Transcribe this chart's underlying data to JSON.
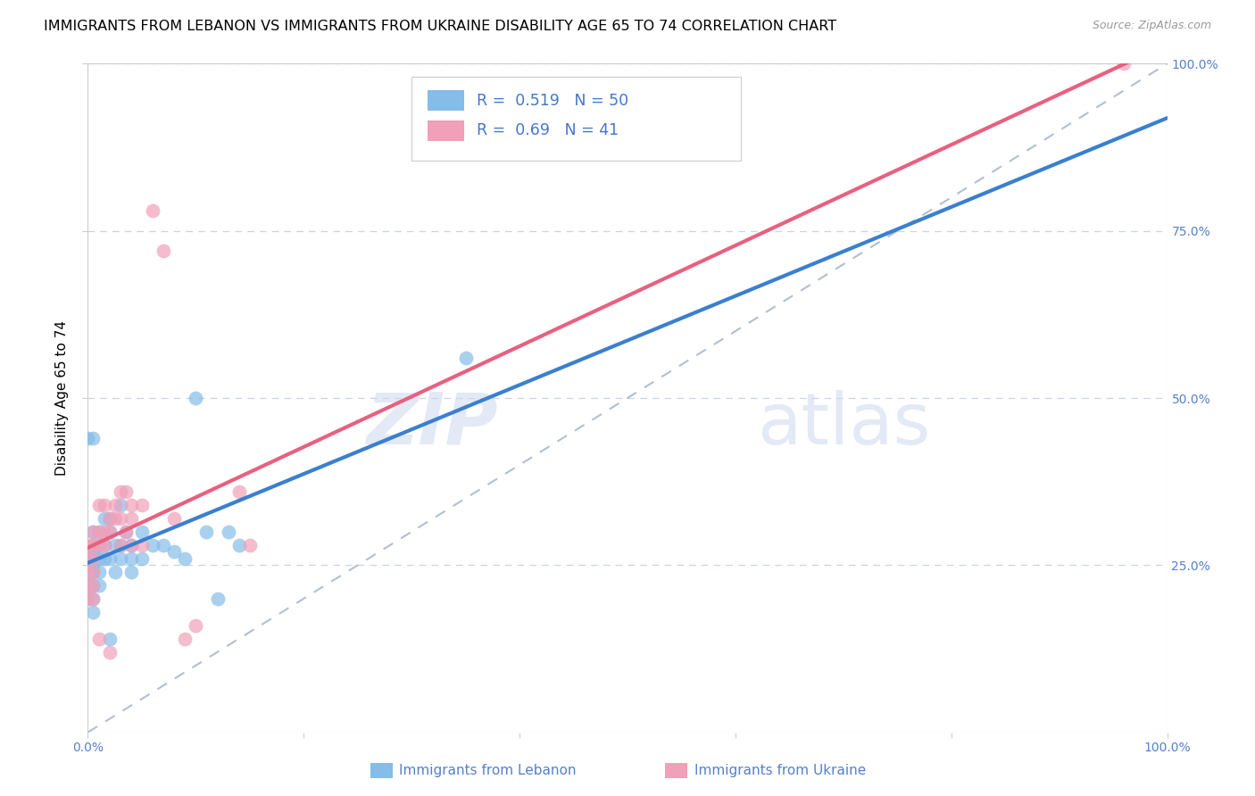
{
  "title": "IMMIGRANTS FROM LEBANON VS IMMIGRANTS FROM UKRAINE DISABILITY AGE 65 TO 74 CORRELATION CHART",
  "source": "Source: ZipAtlas.com",
  "ylabel": "Disability Age 65 to 74",
  "xlim": [
    0,
    1.0
  ],
  "ylim": [
    0,
    1.0
  ],
  "xtick_labels": [
    "0.0%",
    "",
    "",
    "",
    "",
    "100.0%"
  ],
  "xtick_vals": [
    0.0,
    0.2,
    0.4,
    0.6,
    0.8,
    1.0
  ],
  "ytick_vals": [
    0.25,
    0.5,
    0.75,
    1.0
  ],
  "right_ytick_labels": [
    "25.0%",
    "50.0%",
    "75.0%",
    "100.0%"
  ],
  "lebanon_color": "#85bce8",
  "ukraine_color": "#f0a0b8",
  "lebanon_R": 0.519,
  "lebanon_N": 50,
  "ukraine_R": 0.69,
  "ukraine_N": 41,
  "lebanon_line_color": "#3a7fd0",
  "ukraine_line_color": "#e86080",
  "diagonal_color": "#aab8cc",
  "lebanon_scatter_x": [
    0.0,
    0.0,
    0.0,
    0.0,
    0.0,
    0.0,
    0.0,
    0.005,
    0.005,
    0.005,
    0.005,
    0.005,
    0.005,
    0.005,
    0.005,
    0.01,
    0.01,
    0.01,
    0.01,
    0.01,
    0.015,
    0.015,
    0.015,
    0.02,
    0.02,
    0.02,
    0.02,
    0.025,
    0.025,
    0.03,
    0.03,
    0.03,
    0.035,
    0.04,
    0.04,
    0.04,
    0.05,
    0.05,
    0.06,
    0.07,
    0.08,
    0.09,
    0.1,
    0.11,
    0.12,
    0.13,
    0.14,
    0.35,
    0.0,
    0.005
  ],
  "lebanon_scatter_y": [
    0.27,
    0.26,
    0.25,
    0.23,
    0.22,
    0.21,
    0.2,
    0.3,
    0.28,
    0.27,
    0.25,
    0.24,
    0.22,
    0.2,
    0.18,
    0.3,
    0.28,
    0.26,
    0.24,
    0.22,
    0.32,
    0.28,
    0.26,
    0.32,
    0.3,
    0.26,
    0.14,
    0.28,
    0.24,
    0.34,
    0.28,
    0.26,
    0.3,
    0.28,
    0.26,
    0.24,
    0.3,
    0.26,
    0.28,
    0.28,
    0.27,
    0.26,
    0.5,
    0.3,
    0.2,
    0.3,
    0.28,
    0.56,
    0.44,
    0.44
  ],
  "ukraine_scatter_x": [
    0.0,
    0.0,
    0.0,
    0.0,
    0.0,
    0.005,
    0.005,
    0.005,
    0.005,
    0.005,
    0.005,
    0.01,
    0.01,
    0.01,
    0.01,
    0.015,
    0.015,
    0.015,
    0.02,
    0.02,
    0.02,
    0.025,
    0.025,
    0.03,
    0.03,
    0.03,
    0.035,
    0.035,
    0.04,
    0.04,
    0.04,
    0.05,
    0.05,
    0.06,
    0.07,
    0.08,
    0.09,
    0.1,
    0.14,
    0.15,
    0.96
  ],
  "ukraine_scatter_y": [
    0.28,
    0.26,
    0.24,
    0.22,
    0.2,
    0.3,
    0.28,
    0.26,
    0.24,
    0.22,
    0.2,
    0.34,
    0.3,
    0.28,
    0.14,
    0.34,
    0.3,
    0.28,
    0.32,
    0.3,
    0.12,
    0.34,
    0.32,
    0.36,
    0.32,
    0.28,
    0.36,
    0.3,
    0.34,
    0.32,
    0.28,
    0.34,
    0.28,
    0.78,
    0.72,
    0.32,
    0.14,
    0.16,
    0.36,
    0.28,
    1.0
  ],
  "watermark_zip": "ZIP",
  "watermark_atlas": "atlas",
  "background_color": "#ffffff",
  "grid_color": "#c8d4e8",
  "title_fontsize": 11.5,
  "axis_label_fontsize": 11,
  "tick_fontsize": 10,
  "tick_color": "#5580cc",
  "legend_text_color": "#4477cc",
  "bottom_legend_color": "#5580cc"
}
